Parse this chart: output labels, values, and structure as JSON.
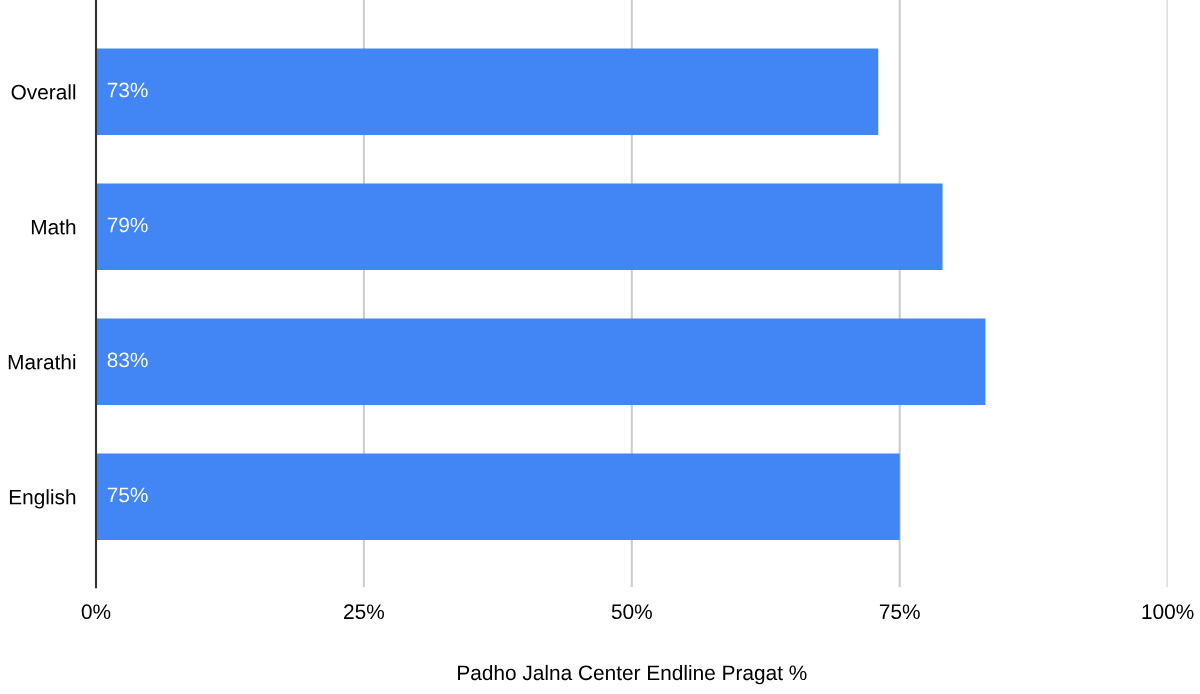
{
  "chart_data": {
    "type": "bar",
    "orientation": "horizontal",
    "categories": [
      "Overall",
      "Math",
      "Marathi",
      "English"
    ],
    "values": [
      73,
      79,
      83,
      75
    ],
    "value_labels": [
      "73%",
      "79%",
      "83%",
      "75%"
    ],
    "color": "#4285f4",
    "xlabel": "Padho Jalna Center Endline Pragat %",
    "xlim": [
      0,
      100
    ],
    "xticks": [
      {
        "value": 0,
        "label": "0%"
      },
      {
        "value": 25,
        "label": "25%"
      },
      {
        "value": 50,
        "label": "50%"
      },
      {
        "value": 75,
        "label": "75%"
      },
      {
        "value": 100,
        "label": "100%"
      }
    ],
    "grid": "x",
    "legend": false
  }
}
